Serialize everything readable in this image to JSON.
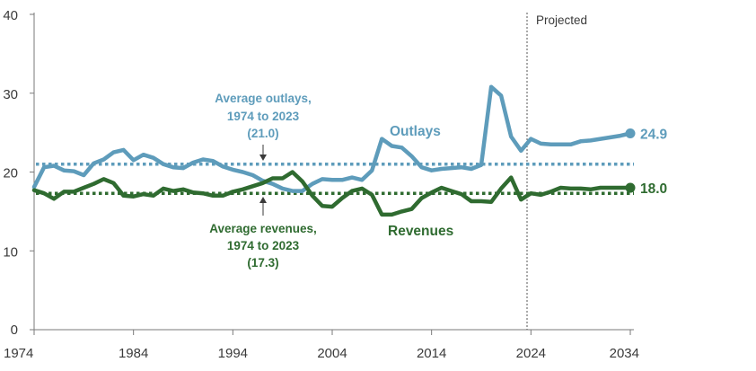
{
  "chart_data": {
    "type": "line",
    "xlim": [
      1974,
      2034
    ],
    "ylim": [
      0,
      40
    ],
    "x_ticks": [
      1974,
      1984,
      1994,
      2004,
      2014,
      2024,
      2034
    ],
    "y_ticks": [
      0,
      10,
      20,
      30,
      40
    ],
    "grid": false,
    "projection_start": 2024,
    "projection_label": "Projected",
    "x": [
      1974,
      1975,
      1976,
      1977,
      1978,
      1979,
      1980,
      1981,
      1982,
      1983,
      1984,
      1985,
      1986,
      1987,
      1988,
      1989,
      1990,
      1991,
      1992,
      1993,
      1994,
      1995,
      1996,
      1997,
      1998,
      1999,
      2000,
      2001,
      2002,
      2003,
      2004,
      2005,
      2006,
      2007,
      2008,
      2009,
      2010,
      2011,
      2012,
      2013,
      2014,
      2015,
      2016,
      2017,
      2018,
      2019,
      2020,
      2021,
      2022,
      2023,
      2024,
      2025,
      2026,
      2027,
      2028,
      2029,
      2030,
      2031,
      2032,
      2033,
      2034
    ],
    "series": [
      {
        "name": "Outlays",
        "color": "#5e9cbb",
        "end_label": "24.9",
        "values": [
          18.1,
          20.6,
          20.8,
          20.2,
          20.1,
          19.6,
          21.1,
          21.6,
          22.5,
          22.8,
          21.5,
          22.2,
          21.8,
          21.0,
          20.6,
          20.5,
          21.2,
          21.6,
          21.4,
          20.7,
          20.3,
          20.0,
          19.6,
          18.9,
          18.5,
          17.9,
          17.6,
          17.6,
          18.5,
          19.1,
          19.0,
          19.0,
          19.3,
          19.0,
          20.2,
          24.2,
          23.3,
          23.1,
          22.0,
          20.6,
          20.2,
          20.4,
          20.5,
          20.6,
          20.4,
          20.9,
          30.8,
          29.7,
          24.5,
          22.7,
          24.2,
          23.6,
          23.5,
          23.5,
          23.5,
          23.9,
          24.0,
          24.2,
          24.4,
          24.6,
          24.9
        ]
      },
      {
        "name": "Revenues",
        "color": "#2f6b30",
        "end_label": "18.0",
        "values": [
          17.7,
          17.3,
          16.6,
          17.5,
          17.5,
          18.0,
          18.5,
          19.1,
          18.6,
          17.0,
          16.9,
          17.2,
          17.0,
          17.9,
          17.6,
          17.8,
          17.4,
          17.3,
          17.0,
          17.0,
          17.5,
          17.8,
          18.2,
          18.6,
          19.2,
          19.2,
          20.0,
          18.8,
          17.0,
          15.7,
          15.6,
          16.7,
          17.6,
          17.9,
          17.1,
          14.6,
          14.6,
          15.0,
          15.3,
          16.7,
          17.4,
          18.0,
          17.6,
          17.2,
          16.3,
          16.3,
          16.2,
          17.9,
          19.3,
          16.5,
          17.3,
          17.1,
          17.5,
          18.0,
          17.9,
          17.9,
          17.8,
          18.0,
          18.0,
          18.0,
          18.0
        ]
      }
    ],
    "averages": [
      {
        "name": "outlays_avg",
        "value": 21.0,
        "color": "#5e9cbb",
        "label_lines": [
          "Average outlays,",
          "1974 to 2023",
          "(21.0)"
        ]
      },
      {
        "name": "revenues_avg",
        "value": 17.3,
        "color": "#2f6b30",
        "label_lines": [
          "Average revenues,",
          "1974 to 2023",
          "(17.3)"
        ]
      }
    ]
  }
}
